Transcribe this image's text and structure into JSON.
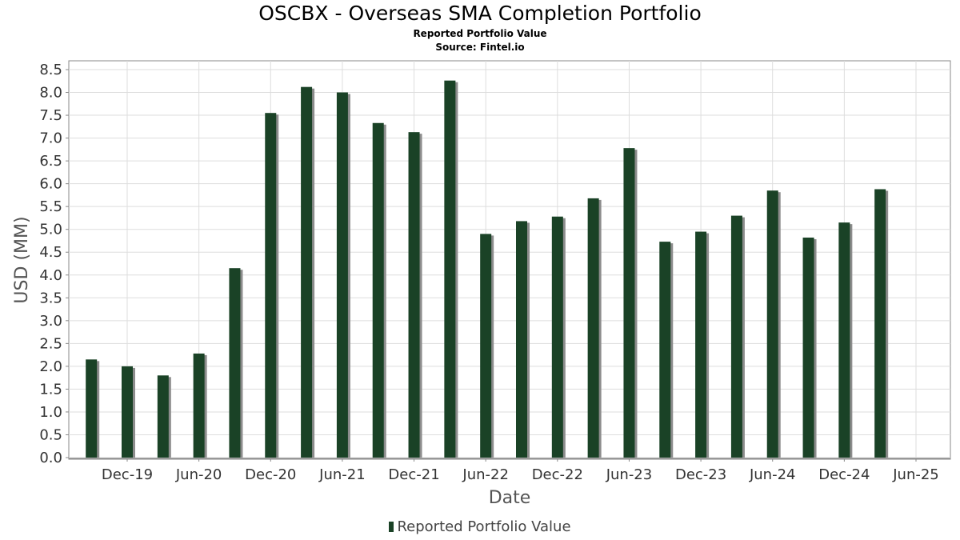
{
  "chart_data": {
    "type": "bar",
    "title": "OSCBX - Overseas SMA Completion Portfolio",
    "subtitle": "Reported Portfolio Value",
    "source": "Source: Fintel.io",
    "xlabel": "Date",
    "ylabel": "USD (MM)",
    "ylim": [
      0,
      8.5
    ],
    "y_ticks": [
      "0.0",
      "0.5",
      "1.0",
      "1.5",
      "2.0",
      "2.5",
      "3.0",
      "3.5",
      "4.0",
      "4.5",
      "5.0",
      "5.5",
      "6.0",
      "6.5",
      "7.0",
      "7.5",
      "8.0",
      "8.5"
    ],
    "x_ticks": [
      "Dec-19",
      "Jun-20",
      "Dec-20",
      "Jun-21",
      "Dec-21",
      "Jun-22",
      "Dec-22",
      "Jun-23",
      "Dec-23",
      "Jun-24",
      "Dec-24",
      "Jun-25"
    ],
    "grid": true,
    "legend_position": "bottom",
    "series": [
      {
        "name": "Reported Portfolio Value",
        "color": "#1a4226",
        "dates": [
          "2019-09",
          "2019-12",
          "2020-03",
          "2020-06",
          "2020-09",
          "2020-12",
          "2021-03",
          "2021-06",
          "2021-09",
          "2021-12",
          "2022-03",
          "2022-06",
          "2022-09",
          "2022-12",
          "2023-03",
          "2023-06",
          "2023-09",
          "2023-12",
          "2024-03",
          "2024-06",
          "2024-09",
          "2024-12",
          "2025-03"
        ],
        "values": [
          2.15,
          2.0,
          1.8,
          2.28,
          4.15,
          7.55,
          8.12,
          8.0,
          7.33,
          7.13,
          8.26,
          4.9,
          5.18,
          5.28,
          5.68,
          6.78,
          4.73,
          4.95,
          5.3,
          5.85,
          4.82,
          5.15,
          5.88
        ]
      }
    ]
  }
}
